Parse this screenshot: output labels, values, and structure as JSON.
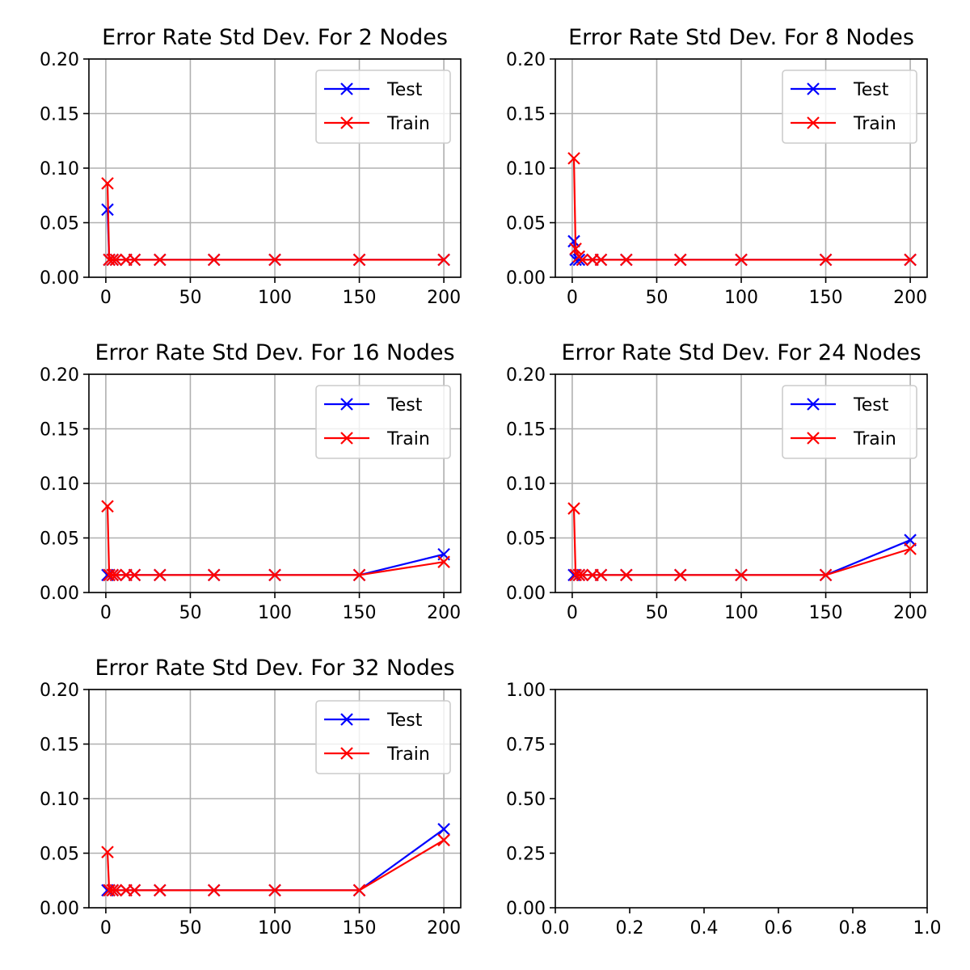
{
  "chart_data": [
    {
      "type": "line",
      "title": "Error Rate Std Dev. For 2 Nodes",
      "xlabel": "",
      "ylabel": "",
      "xlim": [
        -10,
        210
      ],
      "ylim": [
        0,
        0.2
      ],
      "xticks": [
        0,
        50,
        100,
        150,
        200
      ],
      "xtick_labels": [
        "0",
        "50",
        "100",
        "150",
        "200"
      ],
      "yticks": [
        0,
        0.05,
        0.1,
        0.15,
        0.2
      ],
      "ytick_labels": [
        "0.00",
        "0.05",
        "0.10",
        "0.15",
        "0.20"
      ],
      "grid": true,
      "legend": "top-right",
      "x": [
        1,
        2,
        4,
        6,
        12,
        17,
        32,
        64,
        100,
        150,
        200
      ],
      "series": [
        {
          "name": "Test",
          "color": "#0000ff",
          "marker": "x",
          "values": [
            0.062,
            0.016,
            0.016,
            0.016,
            0.016,
            0.016,
            0.016,
            0.016,
            0.016,
            0.016,
            0.016
          ]
        },
        {
          "name": "Train",
          "color": "#ff0000",
          "marker": "x",
          "values": [
            0.086,
            0.016,
            0.016,
            0.016,
            0.016,
            0.016,
            0.016,
            0.016,
            0.016,
            0.016,
            0.016
          ]
        }
      ]
    },
    {
      "type": "line",
      "title": "Error Rate Std Dev. For 8 Nodes",
      "xlabel": "",
      "ylabel": "",
      "xlim": [
        -10,
        210
      ],
      "ylim": [
        0,
        0.2
      ],
      "xticks": [
        0,
        50,
        100,
        150,
        200
      ],
      "xtick_labels": [
        "0",
        "50",
        "100",
        "150",
        "200"
      ],
      "yticks": [
        0,
        0.05,
        0.1,
        0.15,
        0.2
      ],
      "ytick_labels": [
        "0.00",
        "0.05",
        "0.10",
        "0.15",
        "0.20"
      ],
      "grid": true,
      "legend": "top-right",
      "x": [
        1,
        2,
        4,
        6,
        12,
        17,
        32,
        64,
        100,
        150,
        200
      ],
      "series": [
        {
          "name": "Test",
          "color": "#0000ff",
          "marker": "x",
          "values": [
            0.033,
            0.016,
            0.016,
            0.016,
            0.016,
            0.016,
            0.016,
            0.016,
            0.016,
            0.016,
            0.016
          ]
        },
        {
          "name": "Train",
          "color": "#ff0000",
          "marker": "x",
          "values": [
            0.109,
            0.026,
            0.019,
            0.016,
            0.016,
            0.016,
            0.016,
            0.016,
            0.016,
            0.016,
            0.016
          ]
        }
      ]
    },
    {
      "type": "line",
      "title": "Error Rate Std Dev. For 16 Nodes",
      "xlabel": "",
      "ylabel": "",
      "xlim": [
        -10,
        210
      ],
      "ylim": [
        0,
        0.2
      ],
      "xticks": [
        0,
        50,
        100,
        150,
        200
      ],
      "xtick_labels": [
        "0",
        "50",
        "100",
        "150",
        "200"
      ],
      "yticks": [
        0,
        0.05,
        0.1,
        0.15,
        0.2
      ],
      "ytick_labels": [
        "0.00",
        "0.05",
        "0.10",
        "0.15",
        "0.20"
      ],
      "grid": true,
      "legend": "top-right",
      "x": [
        1,
        2,
        4,
        6,
        12,
        17,
        32,
        64,
        100,
        150,
        200
      ],
      "series": [
        {
          "name": "Test",
          "color": "#0000ff",
          "marker": "x",
          "values": [
            0.016,
            0.016,
            0.016,
            0.016,
            0.016,
            0.016,
            0.016,
            0.016,
            0.016,
            0.016,
            0.035
          ]
        },
        {
          "name": "Train",
          "color": "#ff0000",
          "marker": "x",
          "values": [
            0.079,
            0.016,
            0.016,
            0.016,
            0.016,
            0.016,
            0.016,
            0.016,
            0.016,
            0.016,
            0.028
          ]
        }
      ]
    },
    {
      "type": "line",
      "title": "Error Rate Std Dev. For 24 Nodes",
      "xlabel": "",
      "ylabel": "",
      "xlim": [
        -10,
        210
      ],
      "ylim": [
        0,
        0.2
      ],
      "xticks": [
        0,
        50,
        100,
        150,
        200
      ],
      "xtick_labels": [
        "0",
        "50",
        "100",
        "150",
        "200"
      ],
      "yticks": [
        0,
        0.05,
        0.1,
        0.15,
        0.2
      ],
      "ytick_labels": [
        "0.00",
        "0.05",
        "0.10",
        "0.15",
        "0.20"
      ],
      "grid": true,
      "legend": "top-right",
      "x": [
        1,
        2,
        4,
        6,
        12,
        17,
        32,
        64,
        100,
        150,
        200
      ],
      "series": [
        {
          "name": "Test",
          "color": "#0000ff",
          "marker": "x",
          "values": [
            0.016,
            0.016,
            0.016,
            0.016,
            0.016,
            0.016,
            0.016,
            0.016,
            0.016,
            0.016,
            0.048
          ]
        },
        {
          "name": "Train",
          "color": "#ff0000",
          "marker": "x",
          "values": [
            0.077,
            0.016,
            0.016,
            0.016,
            0.016,
            0.016,
            0.016,
            0.016,
            0.016,
            0.016,
            0.04
          ]
        }
      ]
    },
    {
      "type": "line",
      "title": "Error Rate Std Dev. For 32 Nodes",
      "xlabel": "",
      "ylabel": "",
      "xlim": [
        -10,
        210
      ],
      "ylim": [
        0,
        0.2
      ],
      "xticks": [
        0,
        50,
        100,
        150,
        200
      ],
      "xtick_labels": [
        "0",
        "50",
        "100",
        "150",
        "200"
      ],
      "yticks": [
        0,
        0.05,
        0.1,
        0.15,
        0.2
      ],
      "ytick_labels": [
        "0.00",
        "0.05",
        "0.10",
        "0.15",
        "0.20"
      ],
      "grid": true,
      "legend": "top-right",
      "x": [
        1,
        2,
        4,
        6,
        12,
        17,
        32,
        64,
        100,
        150,
        200
      ],
      "series": [
        {
          "name": "Test",
          "color": "#0000ff",
          "marker": "x",
          "values": [
            0.016,
            0.016,
            0.016,
            0.016,
            0.016,
            0.016,
            0.016,
            0.016,
            0.016,
            0.016,
            0.072
          ]
        },
        {
          "name": "Train",
          "color": "#ff0000",
          "marker": "x",
          "values": [
            0.051,
            0.016,
            0.016,
            0.016,
            0.016,
            0.016,
            0.016,
            0.016,
            0.016,
            0.016,
            0.062
          ]
        }
      ]
    },
    {
      "type": "line",
      "title": "",
      "xlabel": "",
      "ylabel": "",
      "xlim": [
        0,
        1
      ],
      "ylim": [
        0,
        1
      ],
      "xticks": [
        0,
        0.2,
        0.4,
        0.6,
        0.8,
        1.0
      ],
      "xtick_labels": [
        "0.0",
        "0.2",
        "0.4",
        "0.6",
        "0.8",
        "1.0"
      ],
      "yticks": [
        0,
        0.25,
        0.5,
        0.75,
        1.0
      ],
      "ytick_labels": [
        "0.00",
        "0.25",
        "0.50",
        "0.75",
        "1.00"
      ],
      "grid": false,
      "legend": "none",
      "x": [],
      "series": []
    }
  ]
}
